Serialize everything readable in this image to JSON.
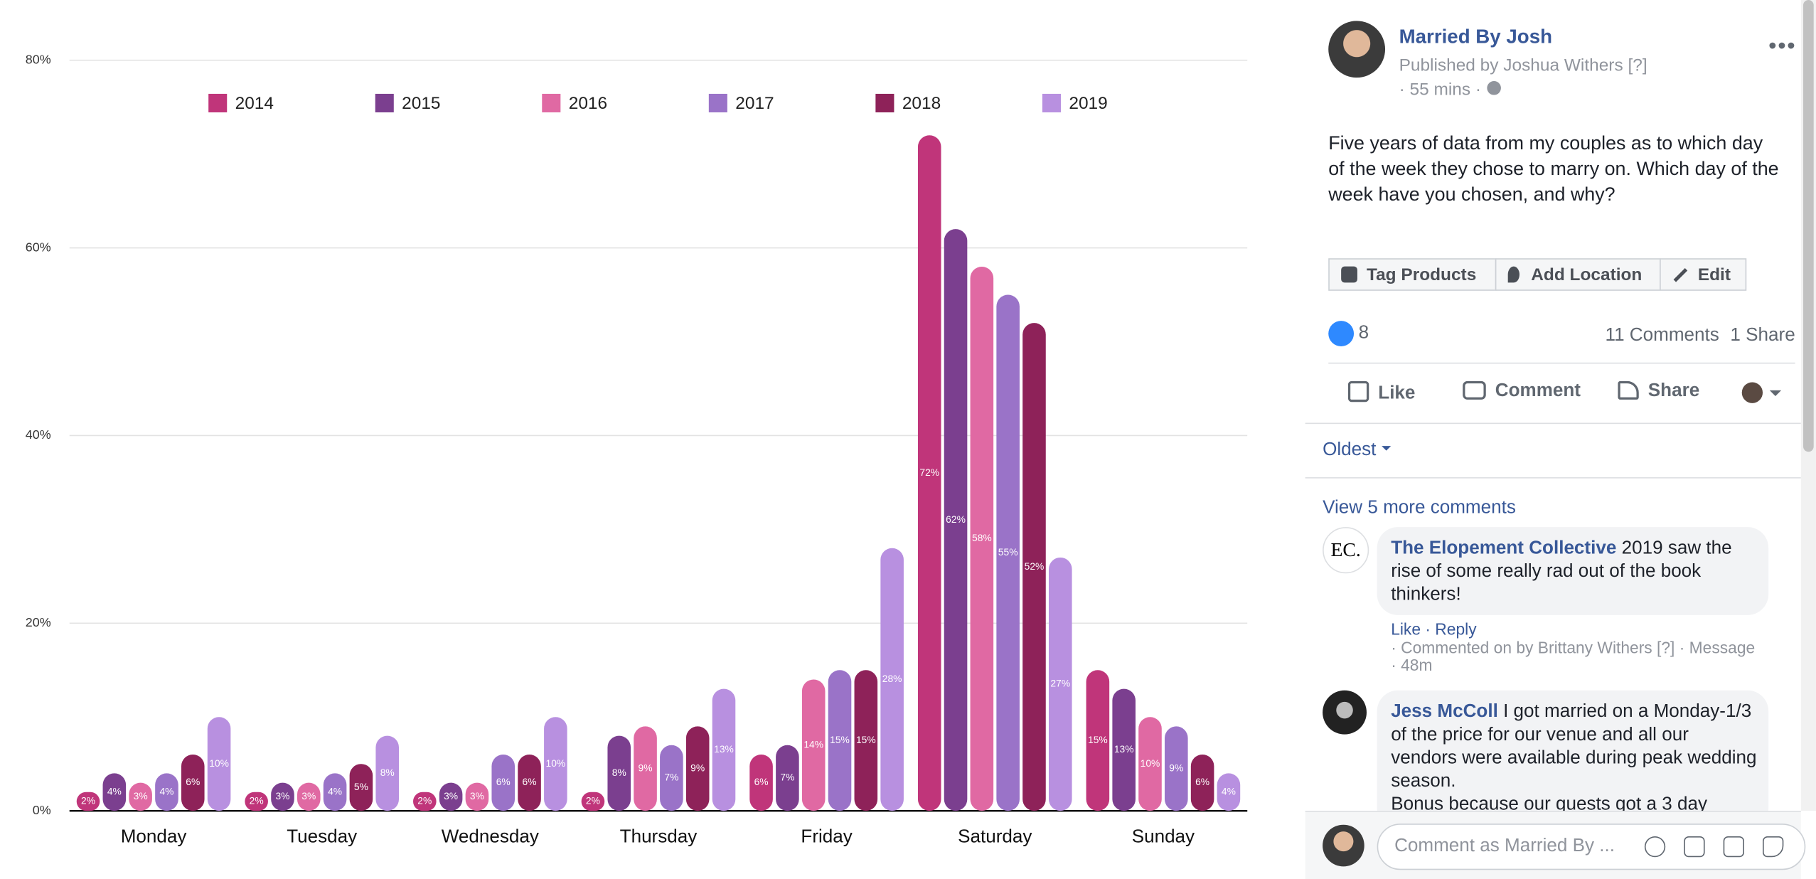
{
  "chart_data": {
    "type": "bar",
    "categories": [
      "Monday",
      "Tuesday",
      "Wednesday",
      "Thursday",
      "Friday",
      "Saturday",
      "Sunday"
    ],
    "series": [
      {
        "name": "2014",
        "color": "#c0357a",
        "values": [
          2,
          2,
          2,
          2,
          6,
          72,
          15
        ],
        "value_labels": [
          "2%",
          "2%",
          "2%",
          "2%",
          "6%",
          "72%",
          "15%"
        ]
      },
      {
        "name": "2015",
        "color": "#7b3f8f",
        "values": [
          4,
          3,
          3,
          8,
          7,
          62,
          13
        ],
        "value_labels": [
          "4%",
          "3%",
          "3%",
          "8%",
          "7%",
          "62%",
          "13%"
        ]
      },
      {
        "name": "2016",
        "color": "#e069a3",
        "values": [
          3,
          3,
          3,
          9,
          14,
          58,
          10
        ],
        "value_labels": [
          "3%",
          "3%",
          "3%",
          "9%",
          "14%",
          "58%",
          "10%"
        ]
      },
      {
        "name": "2017",
        "color": "#9a73c8",
        "values": [
          4,
          4,
          6,
          7,
          15,
          55,
          9
        ],
        "value_labels": [
          "4%",
          "4%",
          "6%",
          "7%",
          "15%",
          "55%",
          "9%"
        ]
      },
      {
        "name": "2018",
        "color": "#8e2259",
        "values": [
          6,
          5,
          6,
          9,
          15,
          52,
          6
        ],
        "value_labels": [
          "6%",
          "5%",
          "6%",
          "9%",
          "15%",
          "52%",
          "6%"
        ]
      },
      {
        "name": "2019",
        "color": "#b890e0",
        "values": [
          10,
          8,
          10,
          13,
          28,
          27,
          4
        ],
        "value_labels": [
          "10%",
          "8%",
          "10%",
          "13%",
          "28%",
          "27%",
          "4%"
        ]
      }
    ],
    "ylim": [
      0,
      80
    ],
    "yticks": [
      {
        "value": 0,
        "label": "0%"
      },
      {
        "value": 20,
        "label": "20%"
      },
      {
        "value": 40,
        "label": "40%"
      },
      {
        "value": 60,
        "label": "60%"
      },
      {
        "value": 80,
        "label": "80%"
      }
    ],
    "grid": true,
    "legend": "top"
  },
  "post": {
    "author": "Married By Josh",
    "publisher": "Published by Joshua Withers [?]",
    "time": "· 55 mins ·",
    "text": "Five years of data from my couples as to which day of the week they chose to marry on. Which day of the week have you chosen, and why?",
    "buttons": [
      "Tag Products",
      "Add Location",
      "Edit"
    ],
    "like_count": 8,
    "comments_count": "11 Comments",
    "shares": "1 Share",
    "actions": [
      "Like",
      "Comment",
      "Share"
    ],
    "sort": "Oldest",
    "view_more": "View 5 more comments",
    "comments": [
      {
        "avatar_text": "EC.",
        "author": "The Elopement Collective",
        "text": "2019 saw the rise of some really rad out of the book thinkers!",
        "actions": [
          "Like",
          "Reply"
        ],
        "meta": "· Commented on by Brittany Withers [?] · Message",
        "time": "· 48m"
      },
      {
        "author": "Jess McColl",
        "text": "I got married on a Monday-1/3 of the price for our venue and all our vendors were available during peak wedding season.",
        "text_continued": "Bonus because our guests got a 3 day"
      }
    ],
    "comment_placeholder": "Comment as Married By ..."
  }
}
